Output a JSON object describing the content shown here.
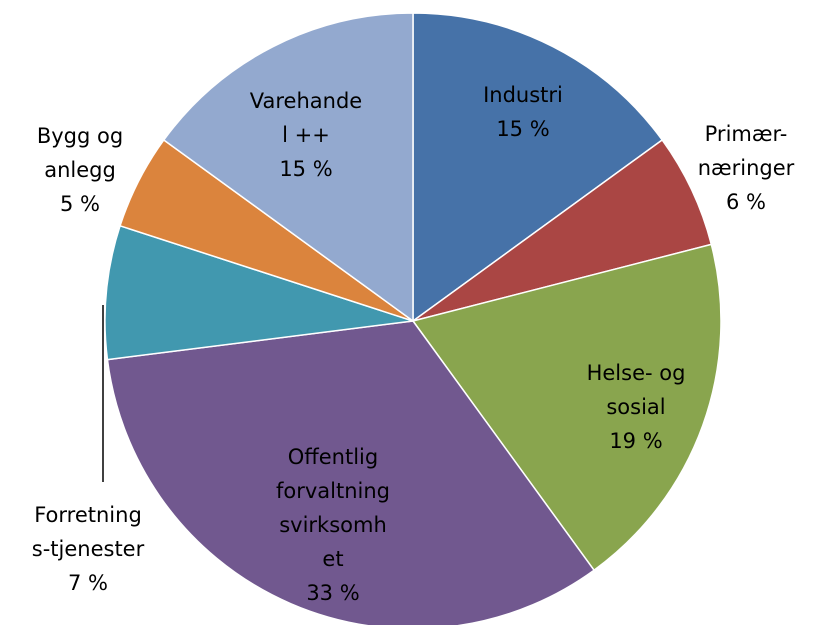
{
  "chart_data": {
    "type": "pie",
    "categories": [
      "Industri",
      "Primær-\nnæringer",
      "Helse- og\nsosial",
      "Offentlig\nforvaltning\nsvirksomh\net",
      "Forretning\ns-tjenester",
      "Bygg og\nanlegg",
      "Varehande\nl ++"
    ],
    "values": [
      15,
      6,
      19,
      33,
      7,
      5,
      15
    ],
    "value_labels": [
      "15 %",
      "6 %",
      "19 %",
      "33 %",
      "7 %",
      "5 %",
      "15 %"
    ],
    "colors": [
      "#4672a8",
      "#aa4644",
      "#89a54e",
      "#71588f",
      "#4198af",
      "#db843d",
      "#93a9cf"
    ]
  }
}
